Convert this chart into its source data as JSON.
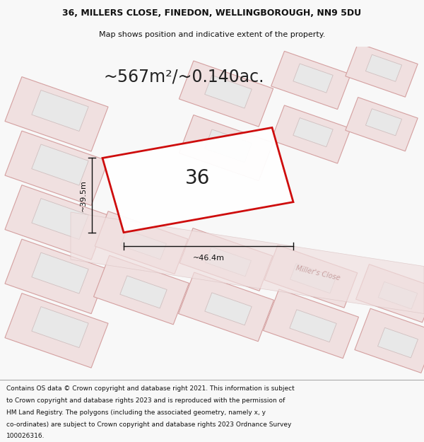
{
  "title_line1": "36, MILLERS CLOSE, FINEDON, WELLINGBOROUGH, NN9 5DU",
  "title_line2": "Map shows position and indicative extent of the property.",
  "area_text": "~567m²/~0.140ac.",
  "label_number": "36",
  "dim_vertical": "~39.5m",
  "dim_horizontal": "~46.4m",
  "road_label": "Miller's Close",
  "footer_lines": [
    "Contains OS data © Crown copyright and database right 2021. This information is subject",
    "to Crown copyright and database rights 2023 and is reproduced with the permission of",
    "HM Land Registry. The polygons (including the associated geometry, namely x, y",
    "co-ordinates) are subject to Crown copyright and database rights 2023 Ordnance Survey",
    "100026316."
  ],
  "bg_color": "#f8f8f8",
  "map_bg": "#ffffff",
  "plot_edge": "#cc0000",
  "neighbor_fill": "#f0e0e0",
  "neighbor_edge": "#d4a0a0",
  "inner_fill": "#e8e8e8",
  "inner_edge": "#d0c0c0",
  "road_color": "#f0e0e0",
  "road_edge": "#d8c0c0",
  "title_fontsize": 9,
  "subtitle_fontsize": 8,
  "area_fontsize": 17,
  "label_fontsize": 20,
  "dim_fontsize": 8,
  "footer_fontsize": 6.5,
  "road_label_color": "#c8a0a0",
  "road_label_fontsize": 7,
  "dim_line_color": "#111111",
  "text_color": "#111111"
}
